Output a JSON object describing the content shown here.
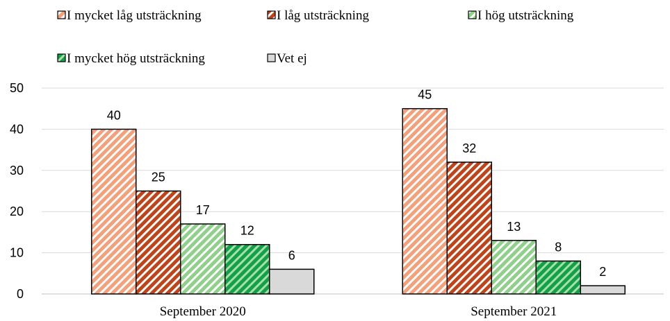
{
  "chart_data": {
    "type": "bar",
    "categories": [
      "September 2020",
      "September 2021"
    ],
    "series": [
      {
        "name": "I mycket låg utsträckning",
        "color": "#f4a07a",
        "stripe": "#ffffff",
        "values": [
          40,
          45
        ]
      },
      {
        "name": "I låg utsträckning",
        "color": "#c0441a",
        "stripe": "#ffffff",
        "values": [
          25,
          32
        ]
      },
      {
        "name": "I hög utsträckning",
        "color": "#8fd08a",
        "stripe": "#ffffff",
        "values": [
          17,
          13
        ]
      },
      {
        "name": "I mycket hög utsträckning",
        "color": "#12a04a",
        "stripe": "#a8e0a8",
        "values": [
          12,
          8
        ]
      },
      {
        "name": "Vet ej",
        "color": "#d9d9d9",
        "values": [
          6,
          2
        ]
      }
    ],
    "ylim": [
      0,
      50
    ],
    "yticks": [
      0,
      10,
      20,
      30,
      40,
      50
    ],
    "grid": true
  }
}
